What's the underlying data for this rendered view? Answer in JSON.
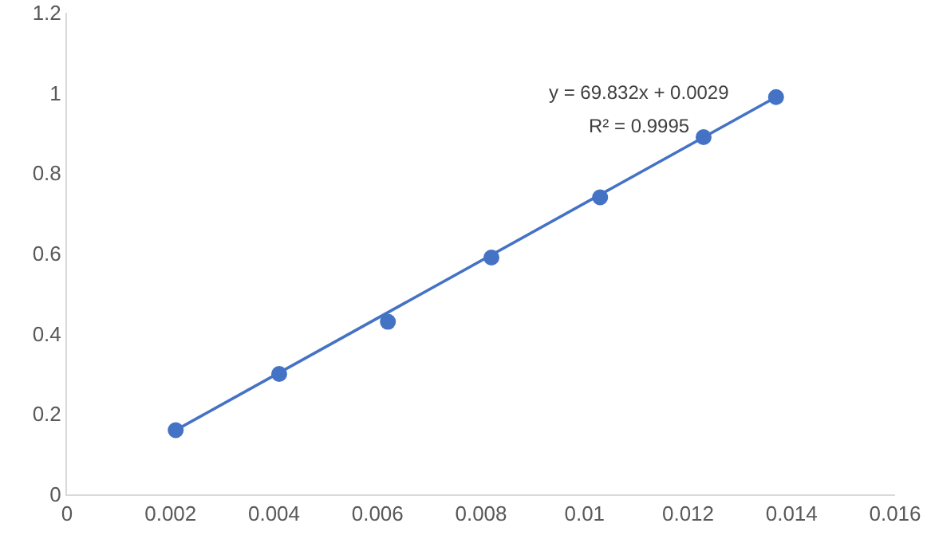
{
  "chart_data": {
    "type": "scatter",
    "xlim": [
      0,
      0.016
    ],
    "ylim": [
      0,
      1.2
    ],
    "xticks": [
      0,
      0.002,
      0.004,
      0.006,
      0.008,
      0.01,
      0.012,
      0.014,
      0.016
    ],
    "yticks": [
      0,
      0.2,
      0.4,
      0.6,
      0.8,
      1,
      1.2
    ],
    "grid": false,
    "marker": "circle",
    "series": [
      {
        "color": "#4472c4",
        "x": [
          0.0021,
          0.0041,
          0.0062,
          0.0082,
          0.0103,
          0.0123,
          0.0137
        ],
        "values": [
          0.16,
          0.3,
          0.43,
          0.59,
          0.74,
          0.89,
          0.99
        ]
      },
      {
        "type": "line",
        "color": "#4472c4",
        "x": [
          0.0021,
          0.0137
        ],
        "values": [
          0.16,
          0.99
        ],
        "marker": "none",
        "line_style": "solid"
      }
    ],
    "annotations": [
      "y = 69.832x + 0.0029",
      "R² = 0.9995"
    ]
  }
}
